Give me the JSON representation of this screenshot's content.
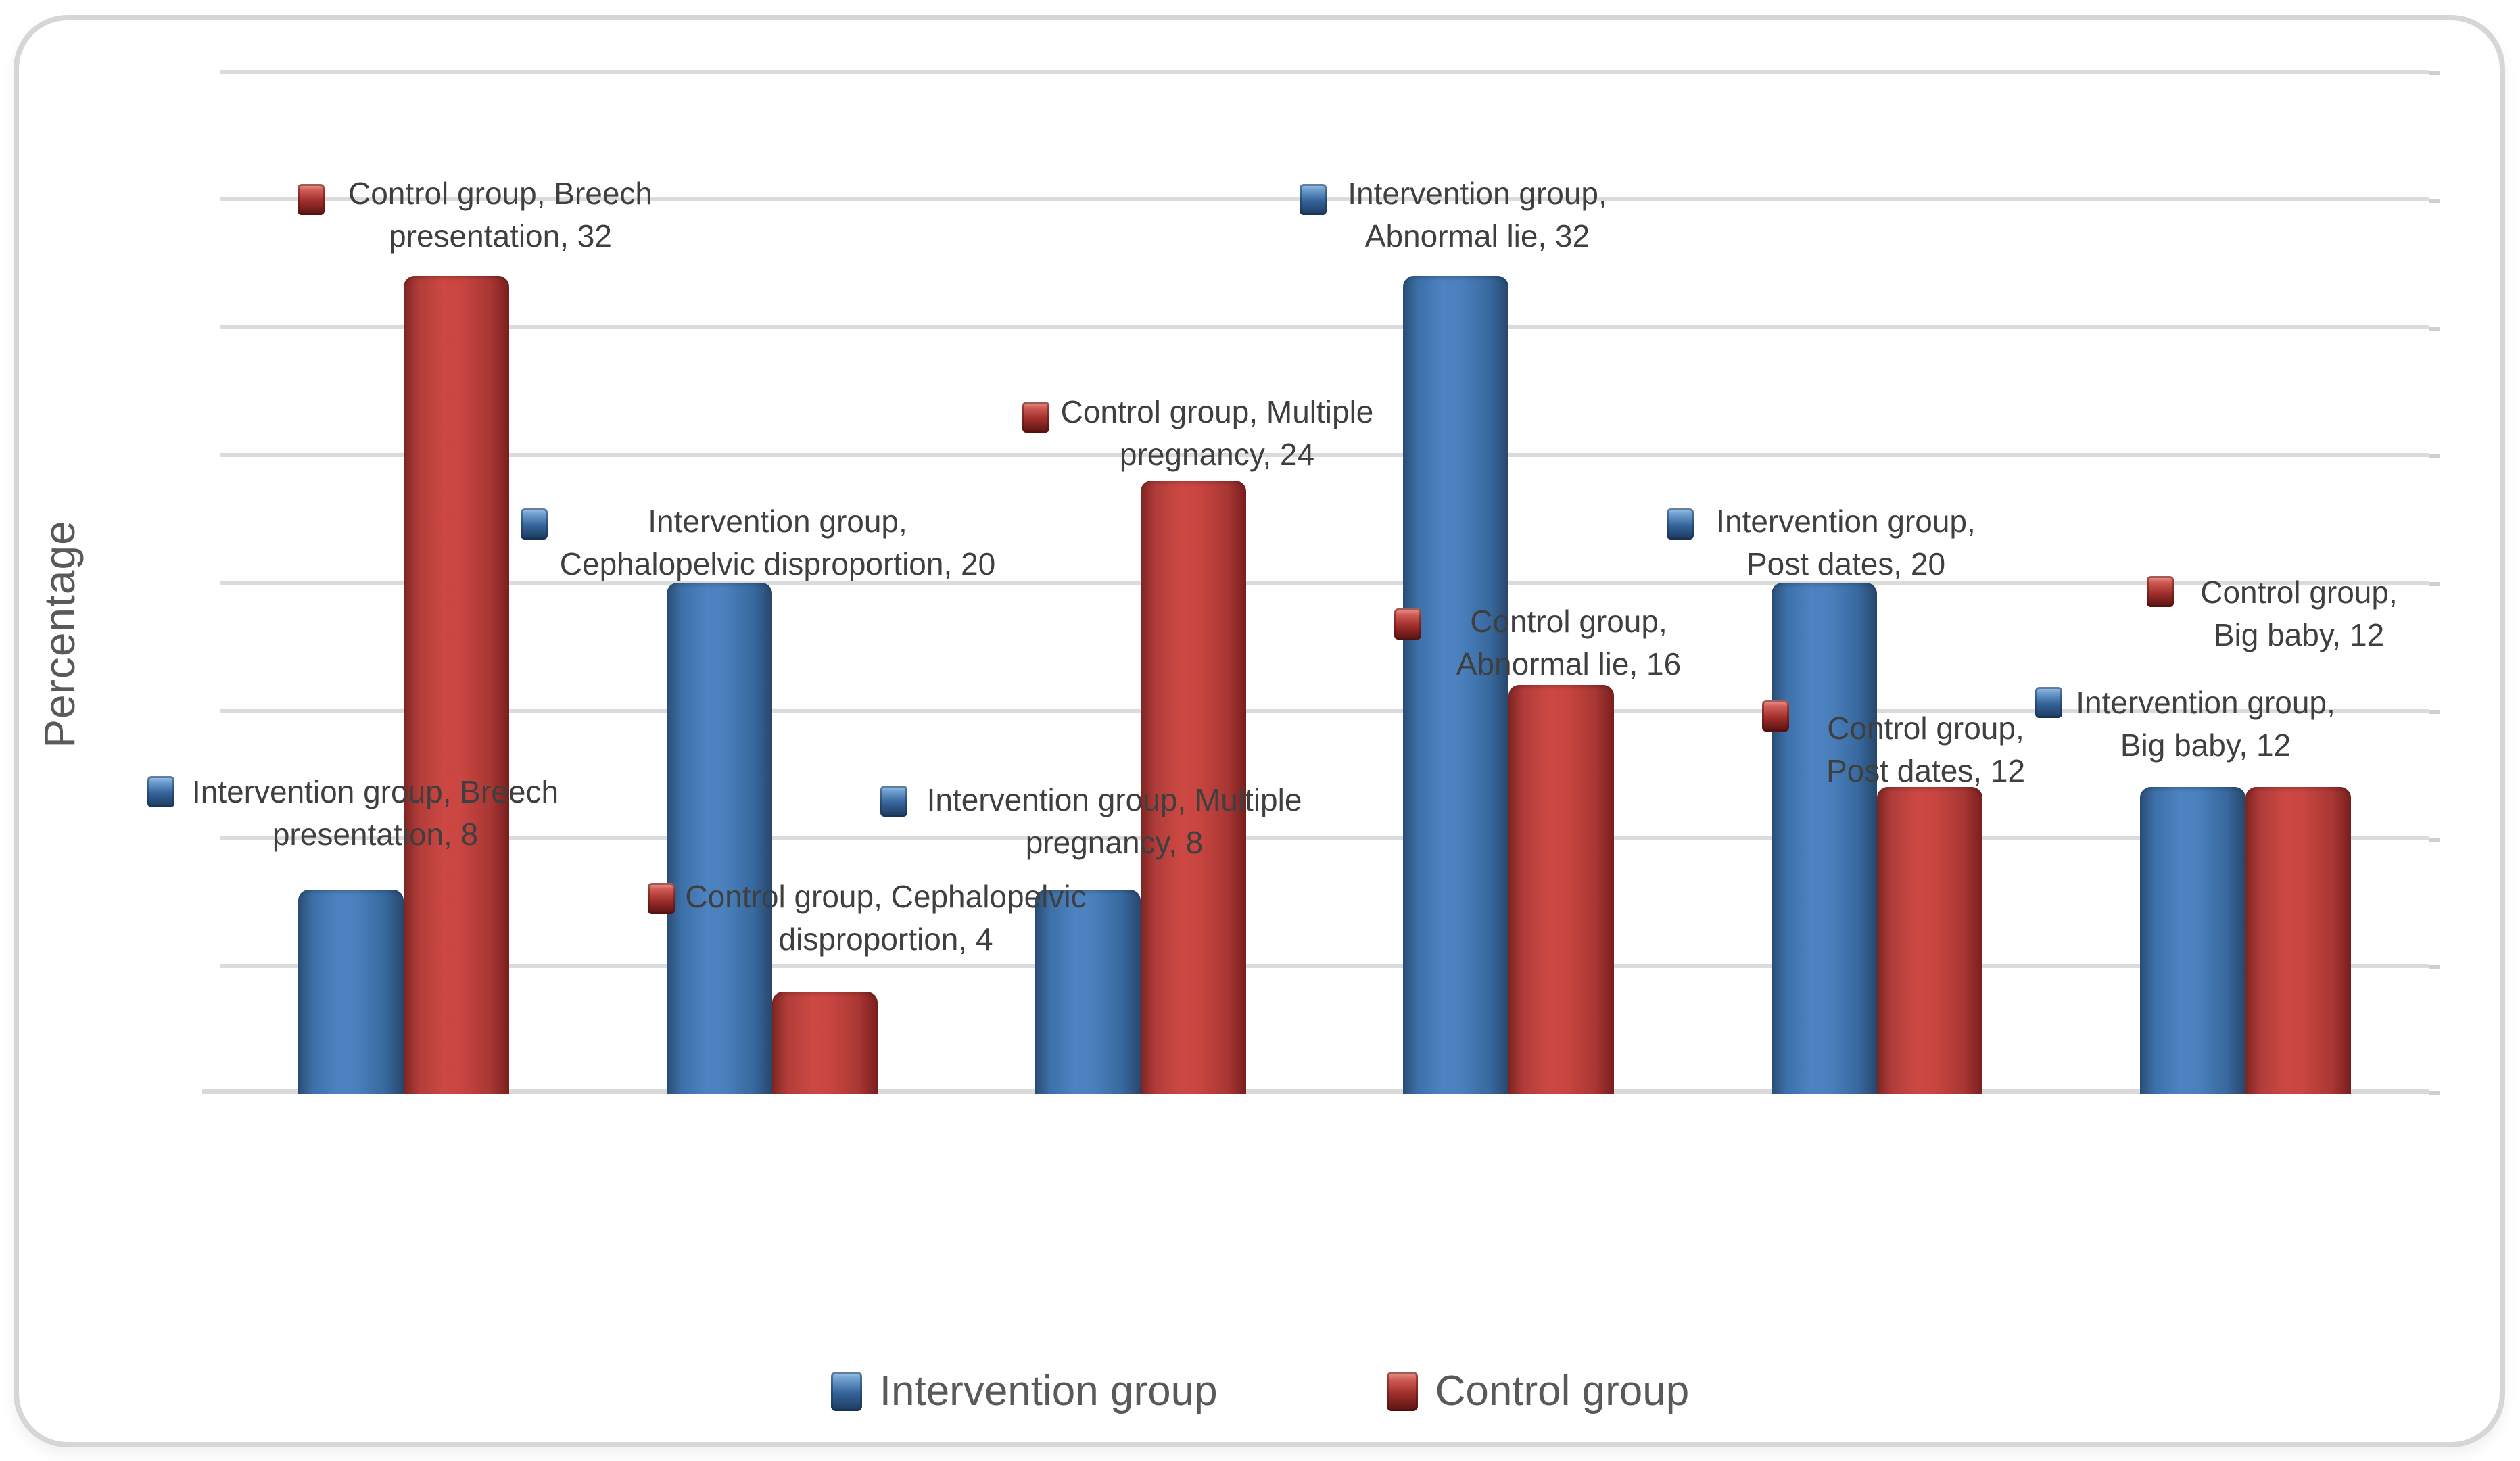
{
  "chart_data": {
    "type": "bar",
    "title": "",
    "xlabel": "",
    "ylabel": "Percentage",
    "ylim": [
      0,
      40
    ],
    "ytick_step": 5,
    "grid": "horizontal",
    "y_tick_labels_visible": false,
    "x_tick_labels_visible": false,
    "legend_position": "bottom",
    "categories": [
      "Breech presentation",
      "Cephalopelvic disproportion",
      "Multiple pregnancy",
      "Abnormal lie",
      "Post dates",
      "Big baby"
    ],
    "series": [
      {
        "name": "Intervention group",
        "color": "#4076B1",
        "values": [
          8,
          20,
          8,
          32,
          20,
          12
        ]
      },
      {
        "name": "Control group",
        "color": "#C04340",
        "values": [
          32,
          4,
          24,
          16,
          12,
          12
        ]
      }
    ]
  },
  "ylabel": "Percentage",
  "legend": [
    {
      "label": "Intervention group",
      "series": 0
    },
    {
      "label": "Control group",
      "series": 1
    }
  ],
  "data_labels": [
    {
      "series": 1,
      "line1": "Control group, Breech",
      "line2": "presentation, 32",
      "value": 32
    },
    {
      "series": 0,
      "line1": "Intervention group,",
      "line2": "Abnormal lie, 32",
      "value": 32
    },
    {
      "series": 1,
      "line1": "Control group, Multiple",
      "line2": "pregnancy, 24",
      "value": 24
    },
    {
      "series": 0,
      "line1": "Intervention group,",
      "line2": "Cephalopelvic disproportion, 20",
      "value": 20
    },
    {
      "series": 0,
      "line1": "Intervention group,",
      "line2": "Post dates, 20",
      "value": 20
    },
    {
      "series": 1,
      "line1": "Control group,",
      "line2": "Big baby, 12",
      "value": 12
    },
    {
      "series": 1,
      "line1": "Control group,",
      "line2": "Abnormal lie, 16",
      "value": 16
    },
    {
      "series": 0,
      "line1": "Intervention group,",
      "line2": "Big baby, 12",
      "value": 12
    },
    {
      "series": 1,
      "line1": "Control group,",
      "line2": "Post dates, 12",
      "value": 12
    },
    {
      "series": 0,
      "line1": "Intervention group, Breech",
      "line2": "presentation, 8",
      "value": 8
    },
    {
      "series": 0,
      "line1": "Intervention group, Multiple",
      "line2": "pregnancy, 8",
      "value": 8
    },
    {
      "series": 1,
      "line1": "Control group, Cephalopelvic",
      "line2": "disproportion, 4",
      "value": 4
    }
  ],
  "colors": {
    "intervention_blue": "#4076B1",
    "control_red": "#C04340",
    "gridline": "#DBDBDB",
    "label_text": "#3F3F3F",
    "axis_title_text": "#595959",
    "panel_border": "#D6D6D6"
  }
}
